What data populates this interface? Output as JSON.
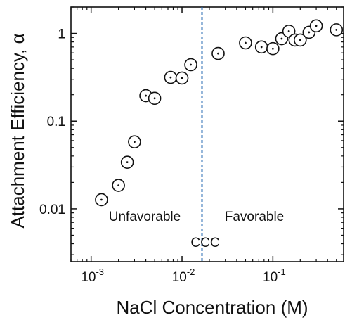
{
  "chart_data": {
    "type": "scatter",
    "xlabel": "NaCl Concentration (M)",
    "ylabel": "Attachment Efficiency, α",
    "x_scale": "log",
    "y_scale": "log",
    "xlim": [
      0.0006,
      0.6
    ],
    "ylim": [
      0.0025,
      2.0
    ],
    "x_ticks": [
      {
        "value": 0.001,
        "base": "10",
        "exp": "-3"
      },
      {
        "value": 0.01,
        "base": "10",
        "exp": "-2"
      },
      {
        "value": 0.1,
        "base": "10",
        "exp": "-1"
      }
    ],
    "y_ticks": [
      {
        "value": 0.01,
        "label": "0.01"
      },
      {
        "value": 0.1,
        "label": "0.1"
      },
      {
        "value": 1,
        "label": "1"
      }
    ],
    "grid": false,
    "marker": "open-circle-with-center-dot",
    "marker_color": "#111111",
    "points": [
      {
        "x": 0.0013,
        "y": 0.0127
      },
      {
        "x": 0.002,
        "y": 0.0185
      },
      {
        "x": 0.0025,
        "y": 0.034
      },
      {
        "x": 0.003,
        "y": 0.058
      },
      {
        "x": 0.004,
        "y": 0.195
      },
      {
        "x": 0.005,
        "y": 0.182
      },
      {
        "x": 0.0075,
        "y": 0.315
      },
      {
        "x": 0.01,
        "y": 0.31
      },
      {
        "x": 0.0125,
        "y": 0.44
      },
      {
        "x": 0.025,
        "y": 0.59
      },
      {
        "x": 0.05,
        "y": 0.78
      },
      {
        "x": 0.075,
        "y": 0.7
      },
      {
        "x": 0.1,
        "y": 0.67
      },
      {
        "x": 0.125,
        "y": 0.87
      },
      {
        "x": 0.15,
        "y": 1.06
      },
      {
        "x": 0.175,
        "y": 0.84
      },
      {
        "x": 0.2,
        "y": 0.84
      },
      {
        "x": 0.25,
        "y": 1.03
      },
      {
        "x": 0.3,
        "y": 1.22
      },
      {
        "x": 0.5,
        "y": 1.1
      }
    ],
    "ccc_line": {
      "x": 0.0166,
      "color": "#2f6fb5",
      "style": "dashed"
    },
    "annotations": {
      "unfavorable": "Unfavorable",
      "favorable": "Favorable",
      "ccc": "CCC"
    }
  }
}
